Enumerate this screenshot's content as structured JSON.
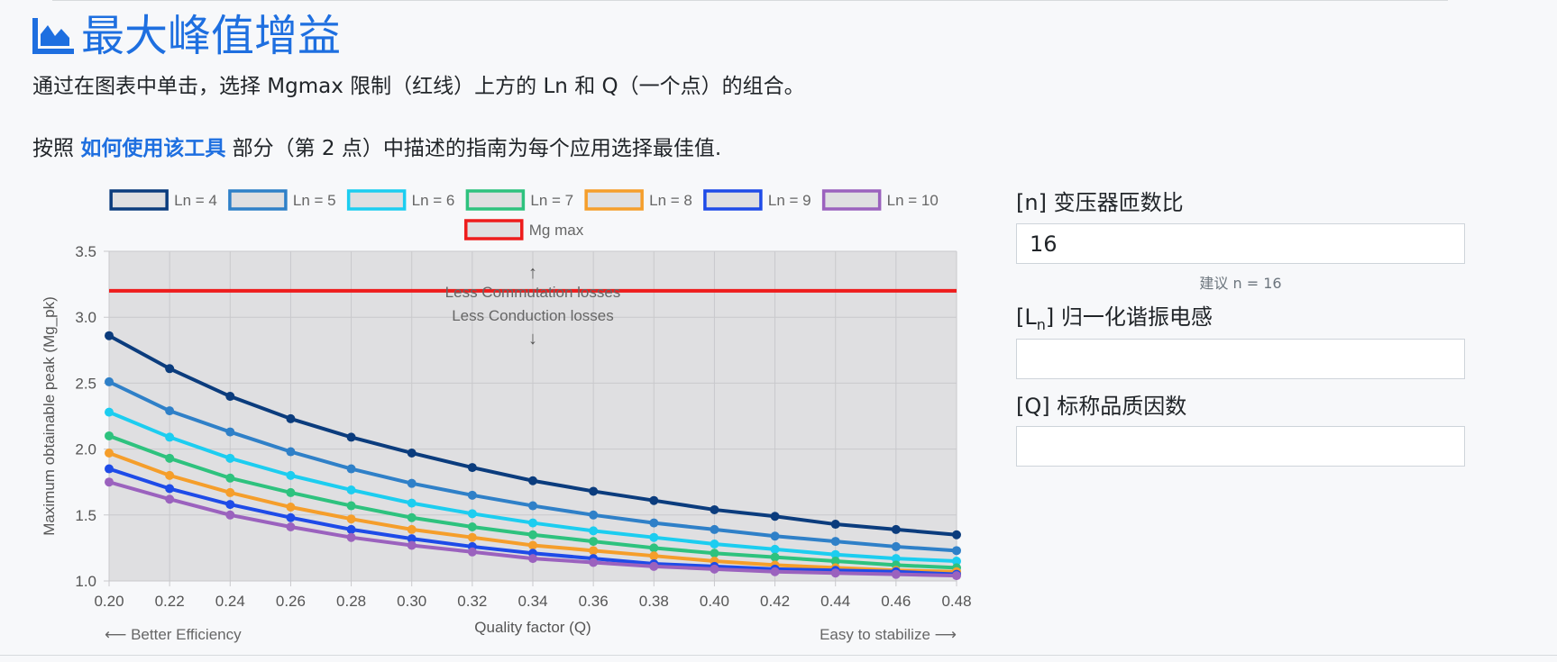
{
  "header": {
    "title": "最大峰值增益",
    "intro_line1": "通过在图表中单击，选择 Mgmax 限制（红线）上方的 Ln 和 Q（一个点）的组合。",
    "intro_line2_prefix": "按照 ",
    "intro_link": "如何使用该工具",
    "intro_line2_suffix": " 部分（第 2 点）中描述的指南为每个应用选择最佳值."
  },
  "chart_data": {
    "type": "line",
    "x": [
      0.2,
      0.22,
      0.24,
      0.26,
      0.28,
      0.3,
      0.32,
      0.34,
      0.36,
      0.38,
      0.4,
      0.42,
      0.44,
      0.46,
      0.48
    ],
    "x_tick_labels": [
      "0.20",
      "0.22",
      "0.24",
      "0.26",
      "0.28",
      "0.30",
      "0.32",
      "0.34",
      "0.36",
      "0.38",
      "0.40",
      "0.42",
      "0.44",
      "0.46",
      "0.48"
    ],
    "y_tick_labels": [
      "1.0",
      "1.5",
      "2.0",
      "2.5",
      "3.0",
      "3.5"
    ],
    "ylim": [
      1.0,
      3.5
    ],
    "xlim": [
      0.2,
      0.48
    ],
    "xlabel": "Quality factor (Q)",
    "ylabel": "Maximum obtainable peak (Mg_pk)",
    "grid": true,
    "legend_position": "top",
    "series": [
      {
        "name": "Ln = 4",
        "color": "#0b3c7d",
        "values": [
          2.86,
          2.61,
          2.4,
          2.23,
          2.09,
          1.97,
          1.86,
          1.76,
          1.68,
          1.61,
          1.54,
          1.49,
          1.43,
          1.39,
          1.35
        ]
      },
      {
        "name": "Ln = 5",
        "color": "#2f80c8",
        "values": [
          2.51,
          2.29,
          2.13,
          1.98,
          1.85,
          1.74,
          1.65,
          1.57,
          1.5,
          1.44,
          1.39,
          1.34,
          1.3,
          1.26,
          1.23
        ]
      },
      {
        "name": "Ln = 6",
        "color": "#1ccdf0",
        "values": [
          2.28,
          2.09,
          1.93,
          1.8,
          1.69,
          1.59,
          1.51,
          1.44,
          1.38,
          1.33,
          1.28,
          1.24,
          1.2,
          1.17,
          1.15
        ]
      },
      {
        "name": "Ln = 7",
        "color": "#2ec27e",
        "values": [
          2.1,
          1.93,
          1.78,
          1.67,
          1.57,
          1.48,
          1.41,
          1.35,
          1.3,
          1.25,
          1.21,
          1.18,
          1.15,
          1.12,
          1.1
        ]
      },
      {
        "name": "Ln = 8",
        "color": "#f59e2b",
        "values": [
          1.97,
          1.8,
          1.67,
          1.56,
          1.47,
          1.39,
          1.33,
          1.27,
          1.23,
          1.19,
          1.15,
          1.12,
          1.1,
          1.08,
          1.07
        ]
      },
      {
        "name": "Ln = 9",
        "color": "#1e4be8",
        "values": [
          1.85,
          1.7,
          1.58,
          1.48,
          1.39,
          1.32,
          1.26,
          1.21,
          1.17,
          1.13,
          1.11,
          1.09,
          1.08,
          1.07,
          1.05
        ]
      },
      {
        "name": "Ln = 10",
        "color": "#9b62be",
        "values": [
          1.75,
          1.62,
          1.5,
          1.41,
          1.33,
          1.27,
          1.22,
          1.17,
          1.14,
          1.11,
          1.09,
          1.07,
          1.06,
          1.05,
          1.04
        ]
      }
    ],
    "limit": {
      "name": "Mg max",
      "color": "#ee1c1c",
      "value": 3.2
    },
    "annotations": {
      "upper_arrow": "↑",
      "upper_text": "Less Commutation losses",
      "lower_text": "Less Conduction losses",
      "lower_arrow": "↓",
      "left_note": "⟵ Better Efficiency",
      "right_note": "Easy to stabilize ⟶"
    },
    "plot_shade_color": "#dfdfe1"
  },
  "form": {
    "n_label": "[n] 变压器匝数比",
    "n_value": "16",
    "n_hint": "建议 n = 16",
    "ln_label_prefix": "[L",
    "ln_label_sub": "n",
    "ln_label_suffix": "] 归一化谐振电感",
    "ln_value": "",
    "q_label": "[Q] 标称品质因数",
    "q_value": ""
  }
}
